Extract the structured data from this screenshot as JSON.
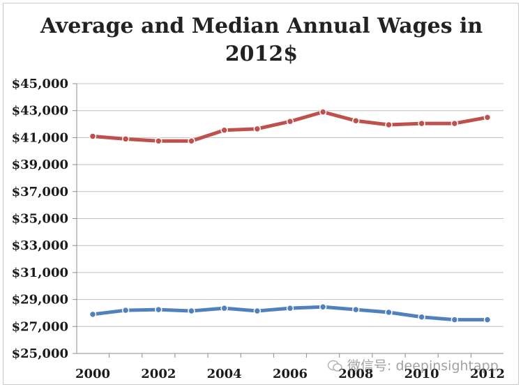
{
  "chart_data": {
    "type": "line",
    "title": "Average and Median Annual Wages in\n2012$",
    "xlabel": "",
    "ylabel": "",
    "x": [
      2000,
      2001,
      2002,
      2003,
      2004,
      2005,
      2006,
      2007,
      2008,
      2009,
      2010,
      2011,
      2012
    ],
    "x_tick_labels": [
      "2000",
      "2002",
      "2004",
      "2006",
      "2008",
      "2010",
      "2012"
    ],
    "x_tick_values": [
      2000,
      2002,
      2004,
      2006,
      2008,
      2010,
      2012
    ],
    "y_tick_labels": [
      "$45,000",
      "$43,000",
      "$41,000",
      "$39,000",
      "$37,000",
      "$35,000",
      "$33,000",
      "$31,000",
      "$29,000",
      "$27,000",
      "$25,000"
    ],
    "y_tick_values": [
      45000,
      43000,
      41000,
      39000,
      37000,
      35000,
      33000,
      31000,
      29000,
      27000,
      25000
    ],
    "ylim": [
      25000,
      45000
    ],
    "grid": true,
    "legend": "none",
    "series": [
      {
        "color": "#c0504d",
        "values": [
          41100,
          40900,
          40750,
          40750,
          41550,
          41650,
          42200,
          42900,
          42250,
          41950,
          42050,
          42050,
          42500
        ]
      },
      {
        "color": "#4f81bd",
        "values": [
          27900,
          28200,
          28250,
          28150,
          28350,
          28150,
          28350,
          28450,
          28250,
          28050,
          27700,
          27500,
          27500
        ]
      }
    ]
  },
  "watermark": {
    "icon": "wechat-icon",
    "text": "微信号: deepinsightapp"
  }
}
